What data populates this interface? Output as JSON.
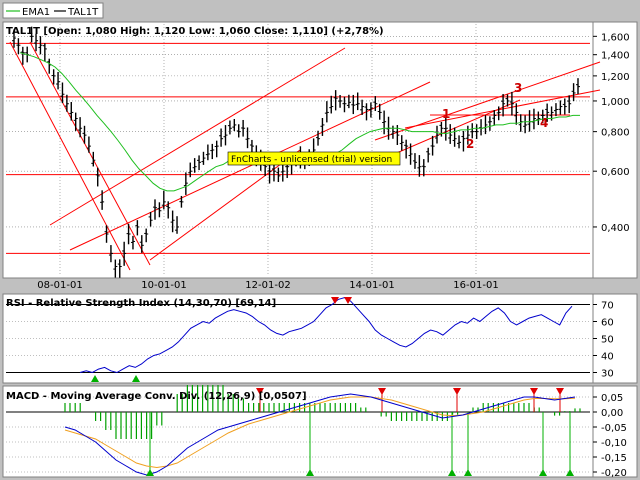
{
  "legend": [
    {
      "name": "EMA1",
      "color": "#1fbf1f"
    },
    {
      "name": "TAL1T",
      "color": "#000000"
    }
  ],
  "price_panel": {
    "header": "TAL1T [Open: 1,080  High: 1,120  Low: 1,060  Close: 1,110] (+2,78%)",
    "watermark": "FnCharts - unlicensed (trial) version",
    "y_ticks": [
      {
        "label": "1,600",
        "v": 1.6
      },
      {
        "label": "1,400",
        "v": 1.4
      },
      {
        "label": "1,200",
        "v": 1.2
      },
      {
        "label": "1,000",
        "v": 1.0
      },
      {
        "label": "0,800",
        "v": 0.8
      },
      {
        "label": "0,600",
        "v": 0.6
      },
      {
        "label": "0,400",
        "v": 0.4
      }
    ],
    "x_ticks": [
      "08-01-01",
      "10-01-01",
      "12-01-02",
      "14-01-01",
      "16-01-01"
    ],
    "wave_labels": [
      "1",
      "2",
      "3",
      "4"
    ]
  },
  "rsi_panel": {
    "header": "RSI - Relative Strength Index (14,30,70) [69,14]",
    "y_ticks": [
      "70",
      "60",
      "50",
      "40",
      "30"
    ]
  },
  "macd_panel": {
    "header": "MACD - Moving Average Conv. Div. (12,26,9) [0,0507]",
    "y_ticks": [
      "0,05",
      "0,00",
      "-0,05",
      "-0,10",
      "-0,15",
      "-0,20"
    ]
  },
  "colors": {
    "price": "#000000",
    "ema": "#1fbf1f",
    "trend": "#ff0000",
    "rsi": "#0000cc",
    "macd": "#0000cc",
    "signal": "#f0a020",
    "hist": "#00a000",
    "buy": "#00b000",
    "sell": "#e00000",
    "wave_label": "#cc0000",
    "watermark_bg": "#ffff00"
  },
  "chart_data": [
    {
      "type": "line",
      "title": "TAL1T [Open: 1,080  High: 1,120  Low: 1,060  Close: 1,110] (+2,78%)",
      "ylim": [
        0.28,
        1.75
      ],
      "y_scale": "log",
      "grid": "horizontal-dotted",
      "legend": "top-left",
      "x_ticks": [
        "08-01-01",
        "10-01-01",
        "12-01-02",
        "14-01-01",
        "16-01-01"
      ],
      "series": [
        {
          "name": "TAL1T",
          "values": [
            1.58,
            1.5,
            1.42,
            1.4,
            1.6,
            1.55,
            1.5,
            1.46,
            1.3,
            1.2,
            1.15,
            1.05,
            0.98,
            0.92,
            0.88,
            0.82,
            0.78,
            0.72,
            0.65,
            0.58,
            0.48,
            0.38,
            0.33,
            0.3,
            0.3,
            0.33,
            0.38,
            0.36,
            0.4,
            0.35,
            0.38,
            0.42,
            0.46,
            0.45,
            0.48,
            0.46,
            0.42,
            0.4,
            0.48,
            0.55,
            0.6,
            0.62,
            0.64,
            0.66,
            0.68,
            0.7,
            0.72,
            0.76,
            0.78,
            0.82,
            0.84,
            0.8,
            0.82,
            0.76,
            0.72,
            0.68,
            0.66,
            0.62,
            0.6,
            0.6,
            0.58,
            0.6,
            0.62,
            0.64,
            0.66,
            0.66,
            0.64,
            0.66,
            0.7,
            0.76,
            0.84,
            0.92,
            0.96,
            1.02,
            1.0,
            0.98,
            0.99,
            0.97,
            0.98,
            0.96,
            0.94,
            0.95,
            0.98,
            0.92,
            0.86,
            0.82,
            0.8,
            0.78,
            0.74,
            0.72,
            0.68,
            0.64,
            0.62,
            0.62,
            0.68,
            0.72,
            0.78,
            0.82,
            0.82,
            0.78,
            0.76,
            0.74,
            0.76,
            0.78,
            0.8,
            0.8,
            0.82,
            0.84,
            0.86,
            0.9,
            0.92,
            0.98,
            1.0,
            0.98,
            0.92,
            0.86,
            0.84,
            0.86,
            0.88,
            0.88,
            0.9,
            0.92,
            0.92,
            0.94,
            0.96,
            0.96,
            0.98,
            1.06,
            1.11
          ]
        },
        {
          "name": "EMA1",
          "values": [
            1.42,
            1.4,
            1.38,
            1.35,
            1.32,
            1.28,
            1.22,
            1.15,
            1.08,
            1.02,
            0.96,
            0.9,
            0.85,
            0.8,
            0.75,
            0.7,
            0.65,
            0.61,
            0.58,
            0.55,
            0.53,
            0.52,
            0.52,
            0.53,
            0.54,
            0.56,
            0.58,
            0.6,
            0.62,
            0.63,
            0.65,
            0.66,
            0.67,
            0.68,
            0.68,
            0.68,
            0.67,
            0.66,
            0.65,
            0.64,
            0.64,
            0.64,
            0.64,
            0.65,
            0.66,
            0.68,
            0.7,
            0.73,
            0.76,
            0.78,
            0.8,
            0.81,
            0.82,
            0.82,
            0.82,
            0.81,
            0.8,
            0.8,
            0.8,
            0.8,
            0.79,
            0.79,
            0.8,
            0.81,
            0.81,
            0.82,
            0.82,
            0.83,
            0.84,
            0.84,
            0.85,
            0.85,
            0.86,
            0.86,
            0.87,
            0.88,
            0.88,
            0.89,
            0.89,
            0.9,
            0.9
          ]
        }
      ]
    },
    {
      "type": "line",
      "title": "RSI - Relative Strength Index (14,30,70) [69,14]",
      "ylim": [
        25,
        75
      ],
      "reference_lines": [
        70,
        30
      ],
      "series": [
        {
          "name": "RSI",
          "values": [
            30,
            31,
            30,
            32,
            33,
            31,
            30,
            32,
            34,
            33,
            35,
            38,
            40,
            41,
            43,
            45,
            48,
            52,
            56,
            58,
            60,
            59,
            62,
            64,
            66,
            67,
            66,
            65,
            63,
            60,
            58,
            55,
            53,
            52,
            54,
            55,
            56,
            58,
            60,
            64,
            68,
            70,
            73,
            74,
            72,
            68,
            64,
            60,
            55,
            52,
            50,
            48,
            46,
            45,
            47,
            50,
            53,
            55,
            54,
            52,
            55,
            58,
            60,
            59,
            62,
            60,
            63,
            66,
            68,
            65,
            60,
            58,
            60,
            62,
            63,
            64,
            62,
            60,
            58,
            65,
            69
          ]
        }
      ]
    },
    {
      "type": "line",
      "title": "MACD - Moving Average Conv. Div. (12,26,9) [0,0507]",
      "ylim": [
        -0.21,
        0.08
      ],
      "reference_lines": [
        0.0
      ],
      "series": [
        {
          "name": "MACD",
          "values": [
            -0.05,
            -0.06,
            -0.08,
            -0.1,
            -0.13,
            -0.16,
            -0.18,
            -0.2,
            -0.21,
            -0.2,
            -0.18,
            -0.15,
            -0.12,
            -0.1,
            -0.08,
            -0.06,
            -0.05,
            -0.04,
            -0.03,
            -0.02,
            -0.01,
            0.0,
            0.01,
            0.02,
            0.03,
            0.04,
            0.05,
            0.055,
            0.06,
            0.055,
            0.05,
            0.04,
            0.03,
            0.02,
            0.01,
            0.0,
            -0.01,
            -0.02,
            -0.015,
            -0.01,
            0.0,
            0.01,
            0.02,
            0.03,
            0.04,
            0.05,
            0.05,
            0.045,
            0.04,
            0.045,
            0.05
          ]
        },
        {
          "name": "Signal",
          "values": [
            -0.06,
            -0.07,
            -0.08,
            -0.09,
            -0.11,
            -0.13,
            -0.15,
            -0.17,
            -0.18,
            -0.185,
            -0.18,
            -0.17,
            -0.15,
            -0.13,
            -0.11,
            -0.09,
            -0.07,
            -0.055,
            -0.04,
            -0.03,
            -0.02,
            -0.01,
            0.0,
            0.01,
            0.02,
            0.03,
            0.04,
            0.045,
            0.05,
            0.05,
            0.05,
            0.045,
            0.04,
            0.03,
            0.02,
            0.01,
            0.0,
            -0.01,
            -0.012,
            -0.01,
            -0.005,
            0.0,
            0.01,
            0.02,
            0.03,
            0.04,
            0.045,
            0.045,
            0.044,
            0.044,
            0.046
          ]
        }
      ]
    }
  ]
}
